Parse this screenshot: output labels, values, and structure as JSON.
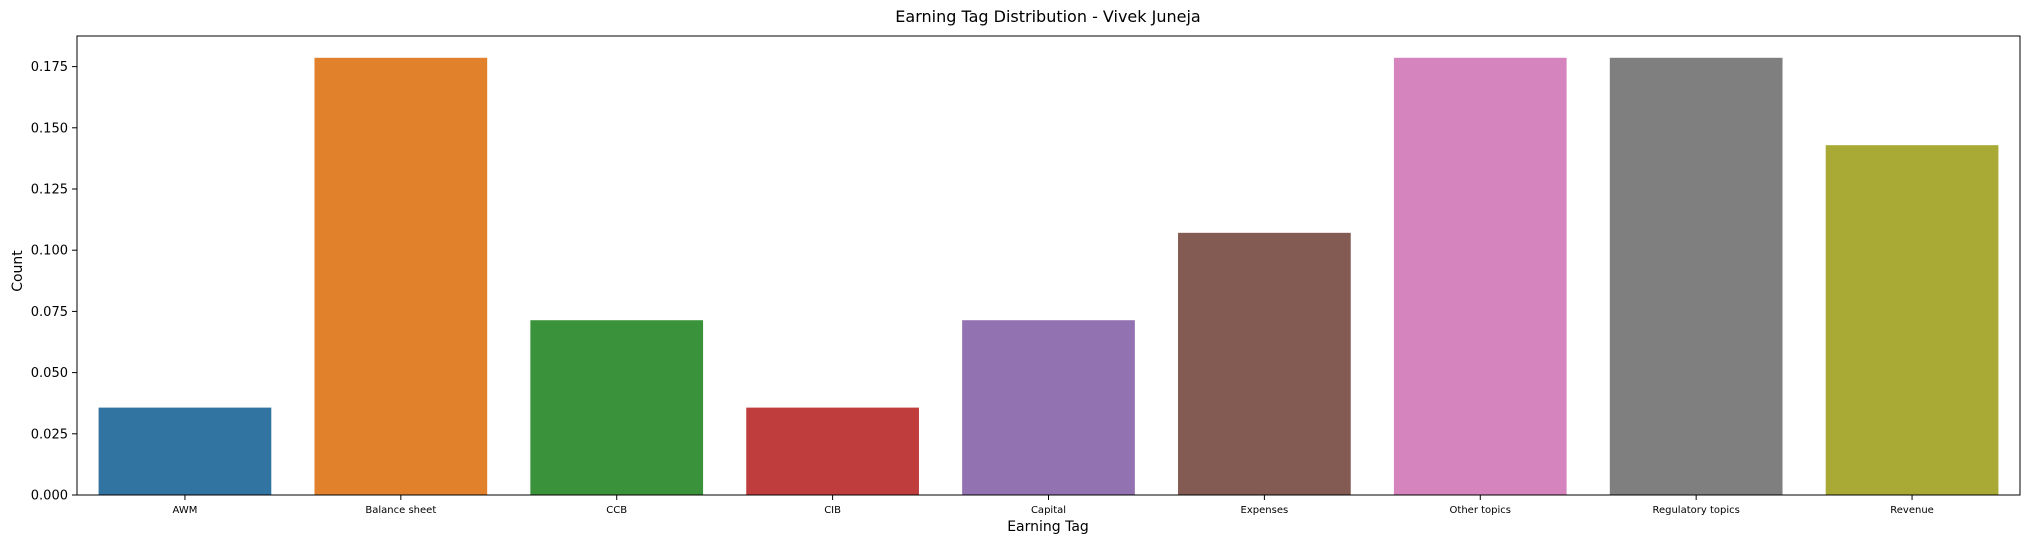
{
  "chart_data": {
    "type": "bar",
    "title": "Earning Tag Distribution - Vivek Juneja",
    "xlabel": "Earning Tag",
    "ylabel": "Count",
    "categories": [
      "AWM",
      "Balance sheet",
      "CCB",
      "CIB",
      "Capital",
      "Expenses",
      "Other topics",
      "Regulatory topics",
      "Revenue"
    ],
    "values": [
      0.0357,
      0.1786,
      0.0714,
      0.0357,
      0.0714,
      0.1071,
      0.1786,
      0.1786,
      0.1429
    ],
    "colors": [
      "#3274a1",
      "#e1812c",
      "#3a923a",
      "#c03d3e",
      "#9372b2",
      "#845b53",
      "#d684bd",
      "#7f7f7f",
      "#a9aa35"
    ],
    "yticks": [
      "0.000",
      "0.025",
      "0.050",
      "0.075",
      "0.100",
      "0.125",
      "0.150",
      "0.175"
    ],
    "ylim": [
      0,
      0.1875
    ],
    "grid": false,
    "legend": "none"
  }
}
